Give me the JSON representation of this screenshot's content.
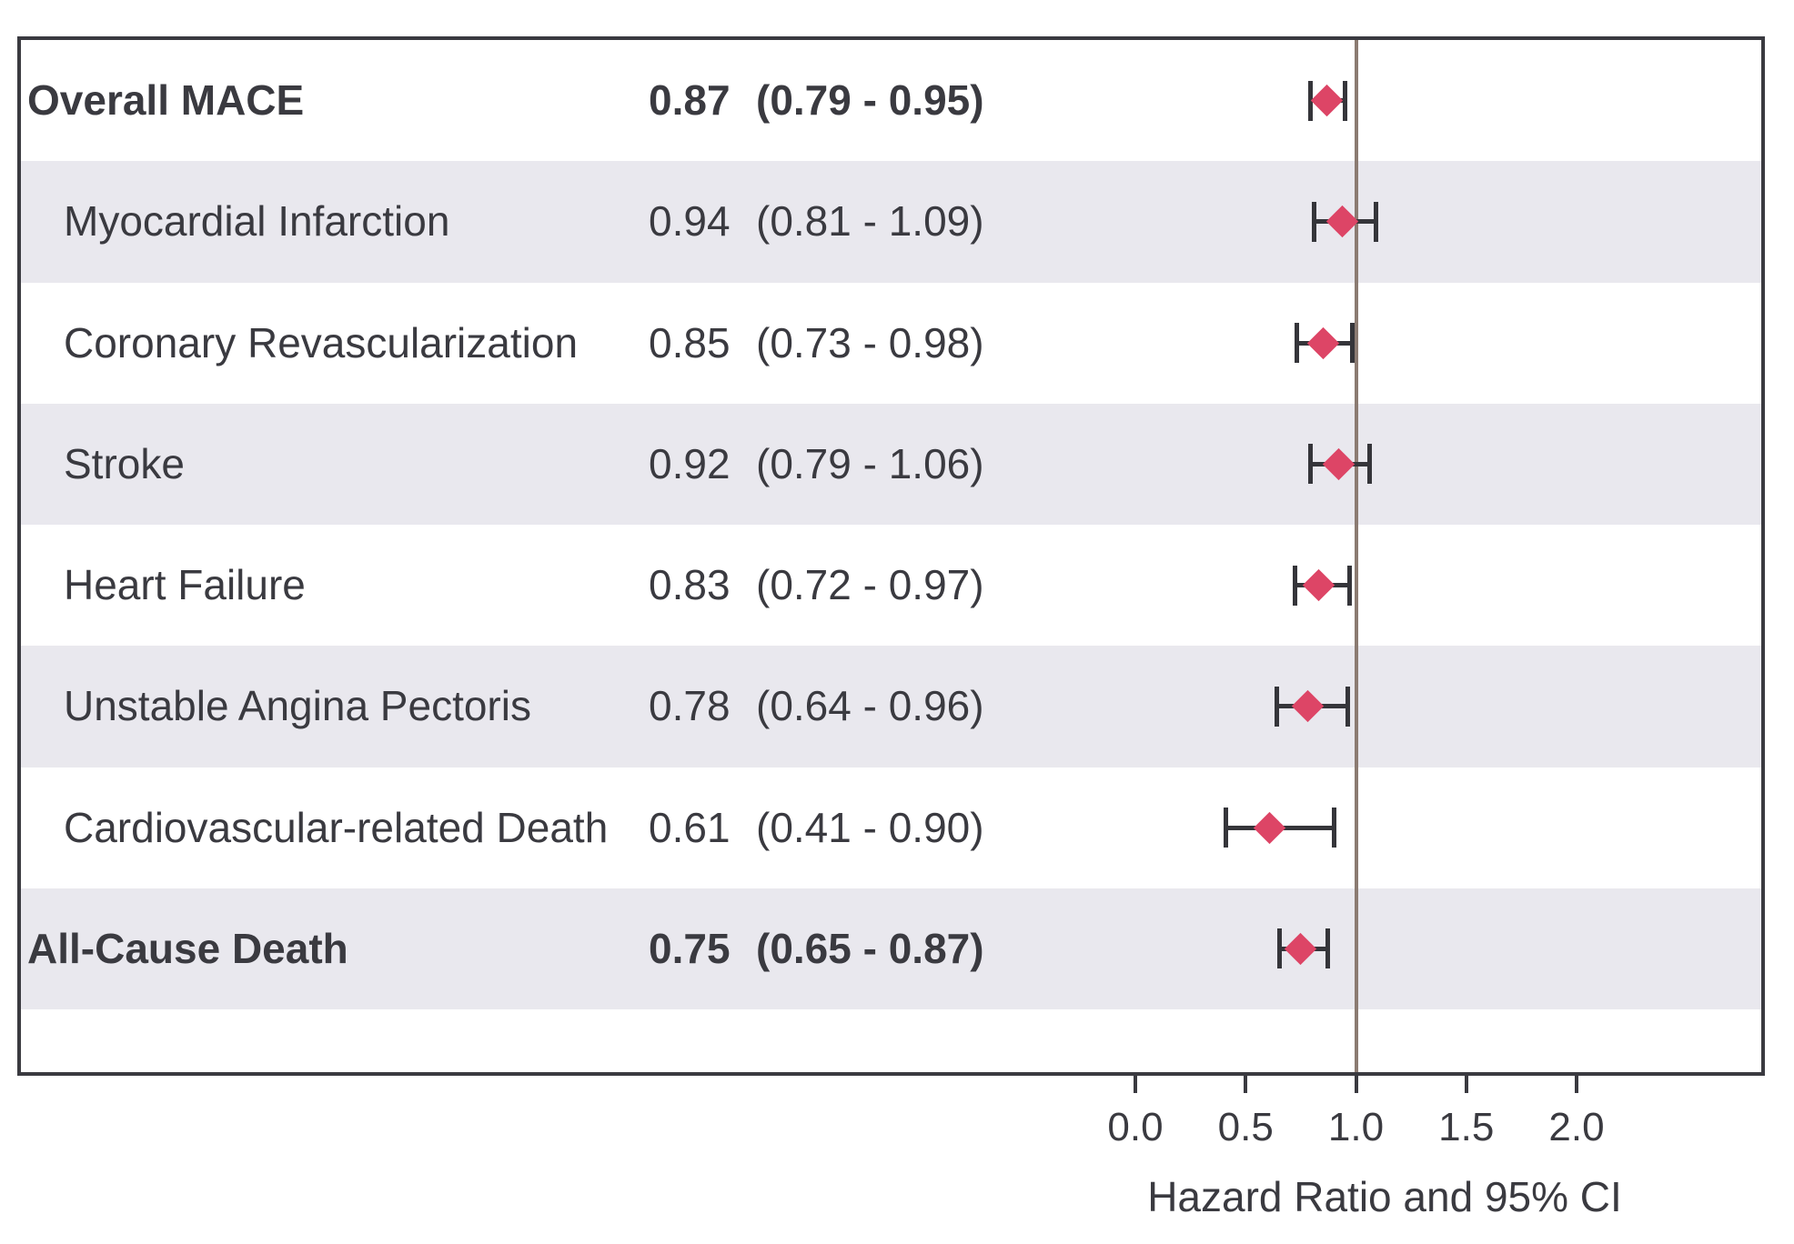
{
  "chart_data": {
    "type": "forest",
    "title": "",
    "xlabel": "Hazard Ratio and 95% CI",
    "x_ticks": [
      {
        "value": 0.0,
        "label": "0.0"
      },
      {
        "value": 0.5,
        "label": "0.5"
      },
      {
        "value": 1.0,
        "label": "1.0"
      },
      {
        "value": 1.5,
        "label": "1.5"
      },
      {
        "value": 2.0,
        "label": "2.0"
      }
    ],
    "x_axis_range": [
      0.0,
      2.3
    ],
    "reference_line_value": 1.0,
    "grid": "row-stripes",
    "legend": "none",
    "rows": [
      {
        "label": "Overall MACE",
        "bold": true,
        "indent": false,
        "estimate": 0.87,
        "ci_low": 0.79,
        "ci_high": 0.95,
        "estimate_text": "0.87",
        "ci_text": "(0.79 - 0.95)"
      },
      {
        "label": "Myocardial Infarction",
        "bold": false,
        "indent": true,
        "estimate": 0.94,
        "ci_low": 0.81,
        "ci_high": 1.09,
        "estimate_text": "0.94",
        "ci_text": "(0.81 - 1.09)"
      },
      {
        "label": "Coronary Revascularization",
        "bold": false,
        "indent": true,
        "estimate": 0.85,
        "ci_low": 0.73,
        "ci_high": 0.98,
        "estimate_text": "0.85",
        "ci_text": "(0.73 - 0.98)"
      },
      {
        "label": "Stroke",
        "bold": false,
        "indent": true,
        "estimate": 0.92,
        "ci_low": 0.79,
        "ci_high": 1.06,
        "estimate_text": "0.92",
        "ci_text": "(0.79 - 1.06)"
      },
      {
        "label": "Heart Failure",
        "bold": false,
        "indent": true,
        "estimate": 0.83,
        "ci_low": 0.72,
        "ci_high": 0.97,
        "estimate_text": "0.83",
        "ci_text": "(0.72 - 0.97)"
      },
      {
        "label": "Unstable Angina Pectoris",
        "bold": false,
        "indent": true,
        "estimate": 0.78,
        "ci_low": 0.64,
        "ci_high": 0.96,
        "estimate_text": "0.78",
        "ci_text": "(0.64 - 0.96)"
      },
      {
        "label": "Cardiovascular-related Death",
        "bold": false,
        "indent": true,
        "estimate": 0.61,
        "ci_low": 0.41,
        "ci_high": 0.9,
        "estimate_text": "0.61",
        "ci_text": "(0.41 - 0.90)"
      },
      {
        "label": "All-Cause Death",
        "bold": true,
        "indent": false,
        "estimate": 0.75,
        "ci_low": 0.65,
        "ci_high": 0.87,
        "estimate_text": "0.75",
        "ci_text": "(0.65 - 0.87)"
      }
    ]
  },
  "colors": {
    "diamond": "#dd4566",
    "stripe": "#e9e8ee",
    "axis": "#3a3a40",
    "text": "#3a3a40",
    "errorbar": "#35353a",
    "refline": "#8b7b72"
  }
}
